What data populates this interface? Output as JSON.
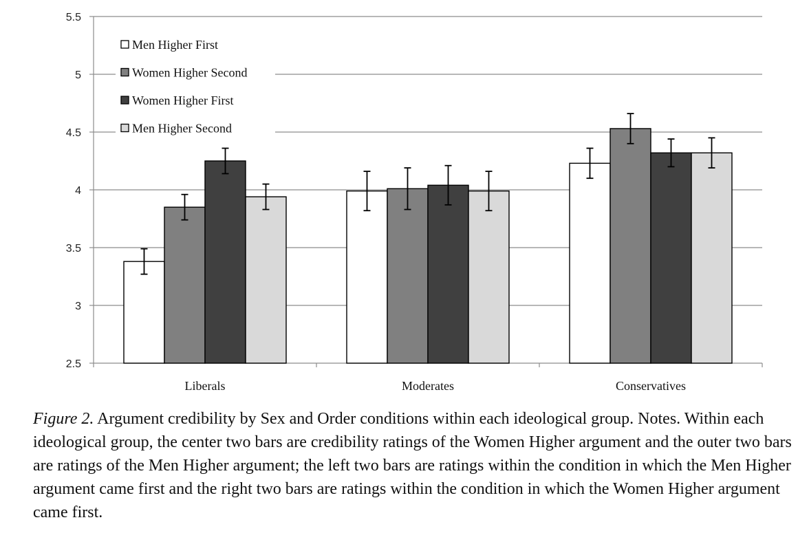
{
  "chart_data": {
    "type": "bar",
    "categories": [
      "Liberals",
      "Moderates",
      "Conservatives"
    ],
    "series": [
      {
        "name": "Men Higher First",
        "color": "#ffffff",
        "values": [
          3.38,
          3.99,
          4.23
        ],
        "errors": [
          0.11,
          0.17,
          0.13
        ]
      },
      {
        "name": "Women Higher Second",
        "color": "#808080",
        "values": [
          3.85,
          4.01,
          4.53
        ],
        "errors": [
          0.11,
          0.18,
          0.13
        ]
      },
      {
        "name": "Women Higher First",
        "color": "#404040",
        "values": [
          4.25,
          4.04,
          4.32
        ],
        "errors": [
          0.11,
          0.17,
          0.12
        ]
      },
      {
        "name": "Men Higher Second",
        "color": "#d9d9d9",
        "values": [
          3.94,
          3.99,
          4.32
        ],
        "errors": [
          0.11,
          0.17,
          0.13
        ]
      }
    ],
    "yticks": [
      "2.5",
      "3",
      "3.5",
      "4",
      "4.5",
      "5",
      "5.5"
    ],
    "ylim": [
      2.5,
      5.5
    ],
    "grid": true,
    "legend_position": "top-left"
  },
  "caption": {
    "label": "Figure 2.",
    "text": " Argument credibility by Sex and Order conditions within each ideological group. Notes. Within each ideological group, the center two bars are credibility ratings of the Women Higher argument and the outer two bars are ratings of the Men Higher argument; the left two bars are ratings within the condition in which the Men Higher argument came first and the right two bars are ratings within the condition in which the Women Higher argument came first."
  }
}
